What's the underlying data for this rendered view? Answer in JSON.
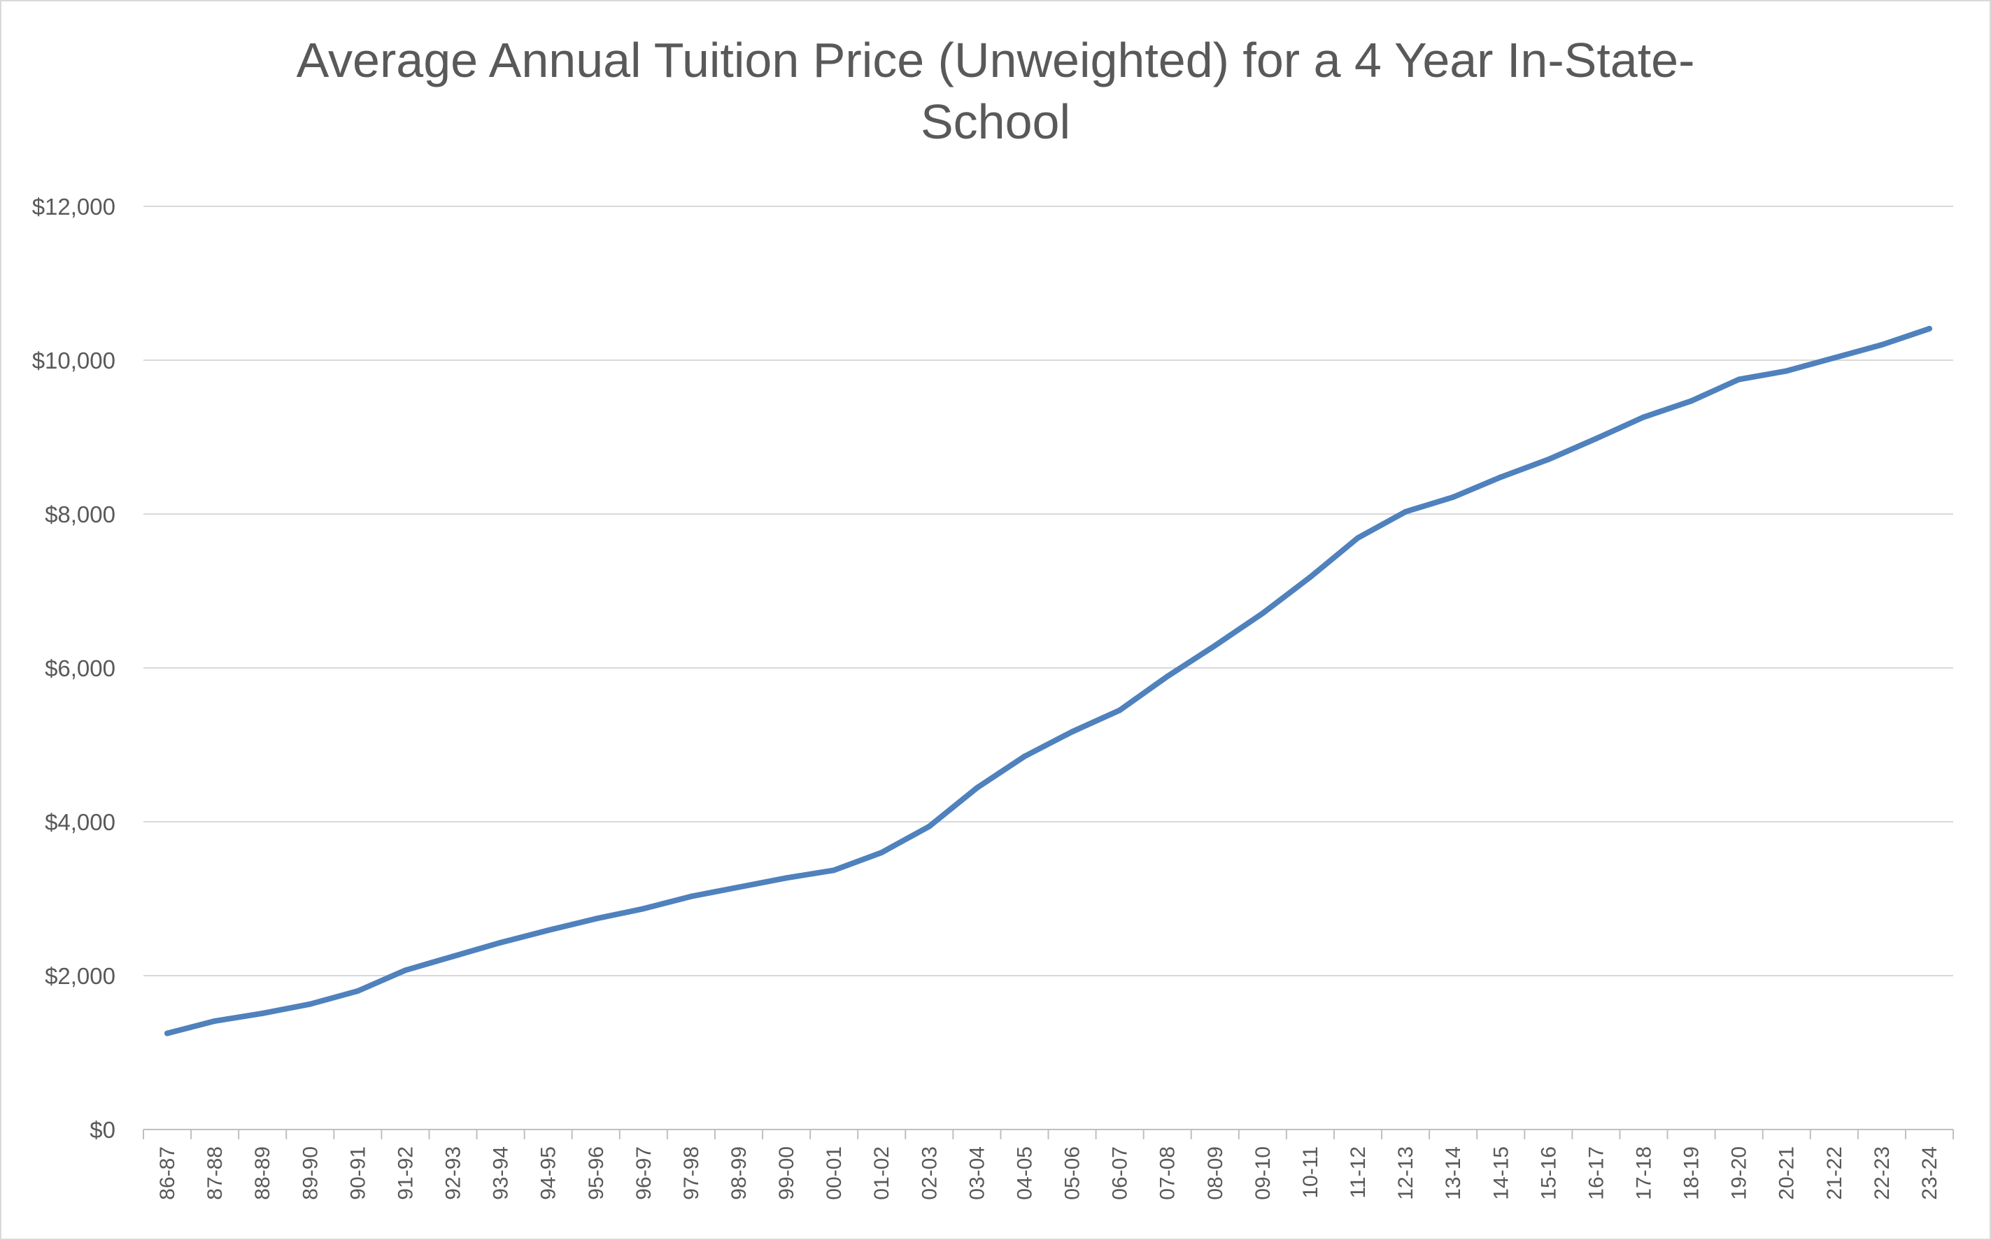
{
  "chart_data": {
    "type": "line",
    "title": "Average Annual Tuition Price (Unweighted) for a 4 Year In-State-School",
    "xlabel": "",
    "ylabel": "",
    "ylim": [
      0,
      12000
    ],
    "yticks": [
      0,
      2000,
      4000,
      6000,
      8000,
      10000,
      12000
    ],
    "ytick_labels": [
      "$0",
      "$2,000",
      "$4,000",
      "$6,000",
      "$8,000",
      "$10,000",
      "$12,000"
    ],
    "grid": true,
    "legend": "none",
    "line_color": "#4f81bd",
    "categories": [
      "86-87",
      "87-88",
      "88-89",
      "89-90",
      "90-91",
      "91-92",
      "92-93",
      "93-94",
      "94-95",
      "95-96",
      "96-97",
      "97-98",
      "98-99",
      "99-00",
      "00-01",
      "01-02",
      "02-03",
      "03-04",
      "04-05",
      "05-06",
      "06-07",
      "07-08",
      "08-09",
      "09-10",
      "10-11",
      "11-12",
      "12-13",
      "13-14",
      "14-15",
      "15-16",
      "16-17",
      "17-18",
      "18-19",
      "19-20",
      "20-21",
      "21-22",
      "22-23",
      "23-24"
    ],
    "series": [
      {
        "values": [
          1250,
          1410,
          1510,
          1630,
          1800,
          2070,
          2250,
          2430,
          2590,
          2740,
          2870,
          3030,
          3150,
          3270,
          3370,
          3600,
          3940,
          4440,
          4850,
          5170,
          5450,
          5890,
          6290,
          6710,
          7180,
          7690,
          8030,
          8220,
          8480,
          8710,
          8980,
          9260,
          9470,
          9750,
          9860,
          10030,
          10200,
          10410
        ]
      }
    ]
  }
}
